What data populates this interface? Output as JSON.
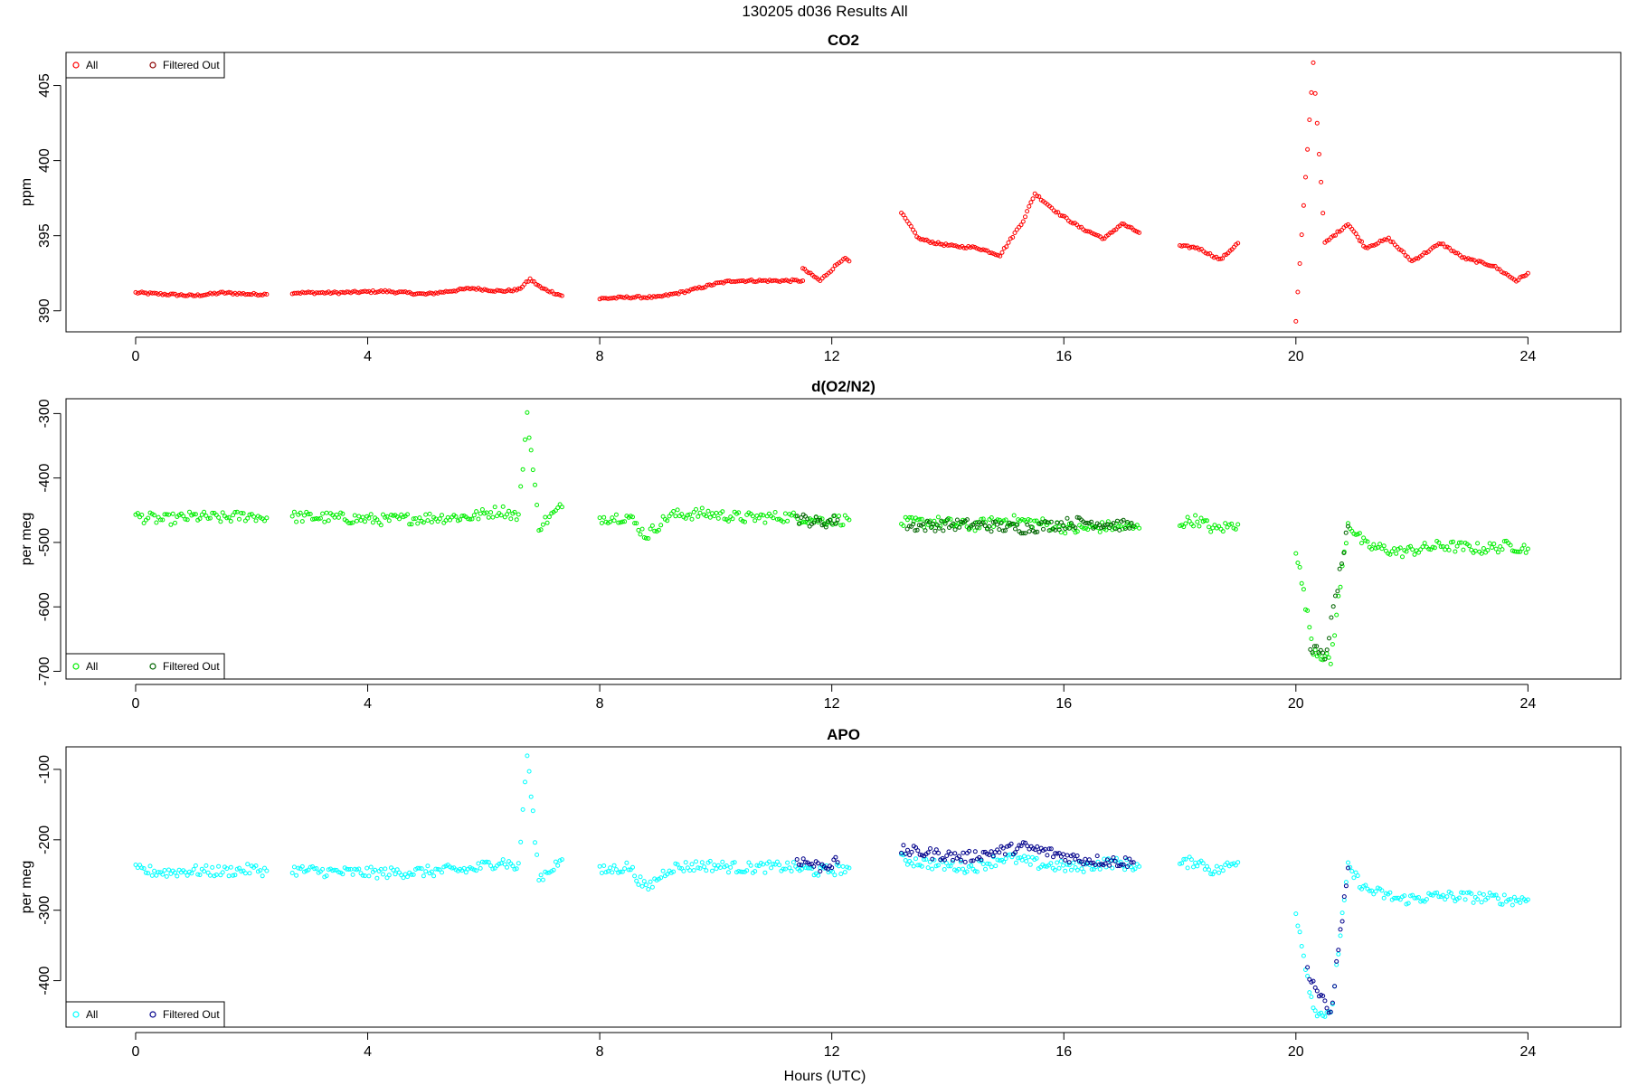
{
  "page_title": "130205   d036   Results All",
  "xlabel": "Hours (UTC)",
  "chart_data": [
    {
      "type": "scatter",
      "title": "CO2",
      "ylabel": "ppm",
      "xlim": [
        -1.2,
        25.6
      ],
      "ylim": [
        388.6,
        407.2
      ],
      "xticks": [
        0,
        4,
        8,
        12,
        16,
        20,
        24
      ],
      "yticks": [
        390,
        395,
        400,
        405
      ],
      "legend_position": "top-left",
      "series": [
        {
          "name": "All",
          "color": "#ff0000",
          "segments": [
            {
              "x": [
                0,
                0.5,
                1,
                1.5,
                2,
                2.26
              ],
              "y": [
                391.2,
                391.1,
                391.0,
                391.2,
                391.1,
                391.1
              ]
            },
            {
              "x": [
                2.7,
                3.5,
                4.3,
                5,
                5.8,
                6.3,
                6.6,
                6.8,
                7.0,
                7.35
              ],
              "y": [
                391.2,
                391.2,
                391.3,
                391.1,
                391.5,
                391.3,
                391.4,
                392.1,
                391.5,
                391.0
              ]
            },
            {
              "x": [
                8,
                8.5,
                9,
                9.5,
                10,
                10.3,
                11,
                11.5
              ],
              "y": [
                390.8,
                390.9,
                390.9,
                391.3,
                391.8,
                392.0,
                392.0,
                392.0
              ]
            },
            {
              "x": [
                11.5,
                11.8,
                12.2,
                12.3
              ],
              "y": [
                392.8,
                392.0,
                393.5,
                393.3
              ]
            },
            {
              "x": [
                13.2,
                13.5,
                13.8,
                14.1,
                14.5,
                14.9,
                15.3,
                15.5,
                15.9,
                16.3,
                16.7,
                17.0,
                17.3
              ],
              "y": [
                396.5,
                394.8,
                394.5,
                394.3,
                394.2,
                393.7,
                396.0,
                397.8,
                396.5,
                395.5,
                394.8,
                395.8,
                395.2
              ]
            },
            {
              "x": [
                18.0,
                18.3,
                18.7,
                19.0
              ],
              "y": [
                394.3,
                394.2,
                393.4,
                394.5
              ]
            },
            {
              "x": [
                20.0,
                20.3,
                20.5,
                20.9,
                21.2,
                21.6,
                22.0,
                22.5,
                22.9,
                23.4,
                23.8,
                24.0
              ],
              "y": [
                389.3,
                406.5,
                394.5,
                395.8,
                394.2,
                394.8,
                393.3,
                394.5,
                393.5,
                393.0,
                392.0,
                392.5
              ]
            }
          ]
        },
        {
          "name": "Filtered Out",
          "color": "#8b0000",
          "segments": []
        }
      ]
    },
    {
      "type": "scatter",
      "title": "d(O2/N2)",
      "ylabel": "per meg",
      "xlim": [
        -1.2,
        25.6
      ],
      "ylim": [
        -712,
        -277
      ],
      "xticks": [
        0,
        4,
        8,
        12,
        16,
        20,
        24
      ],
      "yticks": [
        -700,
        -600,
        -500,
        -400,
        -300
      ],
      "legend_position": "bottom-left",
      "series": [
        {
          "name": "All",
          "color": "#00ee00",
          "segments": [
            {
              "x": [
                0,
                0.5,
                1,
                1.5,
                2,
                2.26
              ],
              "y": [
                -460,
                -465,
                -460,
                -462,
                -458,
                -462
              ]
            },
            {
              "x": [
                2.7,
                3.5,
                4.3,
                5,
                5.8,
                6.3,
                6.6,
                6.75,
                6.95,
                7.35
              ],
              "y": [
                -460,
                -462,
                -465,
                -462,
                -460,
                -450,
                -460,
                -300,
                -475,
                -445
              ]
            },
            {
              "x": [
                8,
                8.5,
                8.8,
                9.2,
                9.8,
                10.5,
                11.2,
                11.8,
                12.3
              ],
              "y": [
                -462,
                -460,
                -490,
                -458,
                -455,
                -462,
                -460,
                -465,
                -465
              ]
            },
            {
              "x": [
                13.2,
                13.8,
                14.4,
                15.0,
                15.6,
                16.2,
                16.8,
                17.3
              ],
              "y": [
                -470,
                -468,
                -475,
                -465,
                -470,
                -480,
                -475,
                -478
              ]
            },
            {
              "x": [
                18.0,
                18.3,
                18.6,
                19.0
              ],
              "y": [
                -470,
                -465,
                -480,
                -472
              ]
            },
            {
              "x": [
                20.0,
                20.3,
                20.6,
                20.9,
                21.2,
                21.8,
                22.5,
                23.2,
                23.7,
                24.0
              ],
              "y": [
                -510,
                -665,
                -685,
                -470,
                -505,
                -515,
                -505,
                -510,
                -505,
                -510
              ]
            }
          ]
        },
        {
          "name": "Filtered Out",
          "color": "#006400",
          "segments": [
            {
              "x": [
                11.4,
                11.8,
                12.1
              ],
              "y": [
                -462,
                -470,
                -465
              ]
            },
            {
              "x": [
                13.3,
                14.3,
                15.3,
                16.3,
                17.2
              ],
              "y": [
                -475,
                -472,
                -478,
                -468,
                -475
              ]
            },
            {
              "x": [
                20.25,
                20.5,
                20.9
              ],
              "y": [
                -660,
                -680,
                -475
              ]
            }
          ]
        }
      ]
    },
    {
      "type": "scatter",
      "title": "APO",
      "ylabel": "per meg",
      "xlim": [
        -1.2,
        25.6
      ],
      "ylim": [
        -466,
        -68
      ],
      "xticks": [
        0,
        4,
        8,
        12,
        16,
        20,
        24
      ],
      "yticks": [
        -400,
        -300,
        -200,
        -100
      ],
      "legend_position": "bottom-left",
      "series": [
        {
          "name": "All",
          "color": "#00ffff",
          "segments": [
            {
              "x": [
                0,
                0.5,
                1,
                1.5,
                2,
                2.26
              ],
              "y": [
                -243,
                -246,
                -244,
                -245,
                -242,
                -244
              ]
            },
            {
              "x": [
                2.7,
                3.5,
                4.3,
                5,
                5.8,
                6.3,
                6.6,
                6.75,
                6.95,
                7.35
              ],
              "y": [
                -243,
                -246,
                -247,
                -245,
                -242,
                -230,
                -240,
                -78,
                -255,
                -228
              ]
            },
            {
              "x": [
                8,
                8.5,
                8.8,
                9.2,
                9.8,
                10.5,
                11.2,
                11.8,
                12.3
              ],
              "y": [
                -245,
                -238,
                -270,
                -240,
                -236,
                -240,
                -238,
                -245,
                -240
              ]
            },
            {
              "x": [
                13.2,
                13.8,
                14.4,
                15.0,
                15.6,
                16.2,
                16.8,
                17.3
              ],
              "y": [
                -228,
                -235,
                -240,
                -225,
                -235,
                -240,
                -232,
                -238
              ]
            },
            {
              "x": [
                18.0,
                18.3,
                18.6,
                19.0
              ],
              "y": [
                -235,
                -230,
                -245,
                -232
              ]
            },
            {
              "x": [
                20.0,
                20.3,
                20.6,
                20.9,
                21.2,
                21.8,
                22.5,
                23.2,
                23.7,
                24.0
              ],
              "y": [
                -300,
                -440,
                -452,
                -240,
                -270,
                -285,
                -280,
                -282,
                -285,
                -285
              ]
            }
          ]
        },
        {
          "name": "Filtered Out",
          "color": "#00008b",
          "segments": [
            {
              "x": [
                11.4,
                11.8,
                12.1
              ],
              "y": [
                -228,
                -238,
                -232
              ]
            },
            {
              "x": [
                13.2,
                14.3,
                15.3,
                16.3,
                17.2
              ],
              "y": [
                -215,
                -225,
                -210,
                -228,
                -232
              ]
            },
            {
              "x": [
                20.2,
                20.4,
                20.6,
                20.9
              ],
              "y": [
                -385,
                -420,
                -448,
                -240
              ]
            }
          ]
        }
      ]
    }
  ]
}
